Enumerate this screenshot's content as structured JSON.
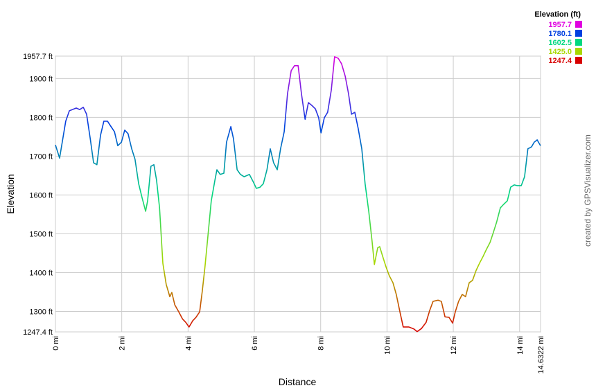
{
  "chart_data": {
    "type": "line",
    "y_label": "Elevation",
    "x_label": "Distance",
    "credit": "created by GPSVisualizer.com",
    "grid": true,
    "x": [
      0,
      0.125,
      0.31,
      0.42,
      0.63,
      0.73,
      0.84,
      0.94,
      1.05,
      1.15,
      1.25,
      1.36,
      1.46,
      1.57,
      1.67,
      1.78,
      1.88,
      1.99,
      2.09,
      2.19,
      2.3,
      2.4,
      2.51,
      2.61,
      2.72,
      2.78,
      2.88,
      2.97,
      3.05,
      3.14,
      3.24,
      3.34,
      3.45,
      3.51,
      3.6,
      3.72,
      3.83,
      3.93,
      4.03,
      4.14,
      4.24,
      4.35,
      4.43,
      4.51,
      4.6,
      4.7,
      4.81,
      4.87,
      4.97,
      5.08,
      5.16,
      5.29,
      5.37,
      5.48,
      5.58,
      5.69,
      5.85,
      5.96,
      6.06,
      6.17,
      6.27,
      6.38,
      6.48,
      6.58,
      6.69,
      6.79,
      6.9,
      7.0,
      7.11,
      7.21,
      7.32,
      7.42,
      7.53,
      7.63,
      7.73,
      7.84,
      7.94,
      8.01,
      8.11,
      8.21,
      8.32,
      8.42,
      8.53,
      8.63,
      8.74,
      8.84,
      8.93,
      9.03,
      9.13,
      9.24,
      9.34,
      9.45,
      9.55,
      9.62,
      9.72,
      9.78,
      9.87,
      9.97,
      10.07,
      10.18,
      10.28,
      10.39,
      10.49,
      10.66,
      10.81,
      10.91,
      11.04,
      11.18,
      11.29,
      11.39,
      11.54,
      11.64,
      11.75,
      11.87,
      11.98,
      12.06,
      12.16,
      12.27,
      12.37,
      12.48,
      12.58,
      12.69,
      12.79,
      12.9,
      13.0,
      13.11,
      13.21,
      13.31,
      13.42,
      13.52,
      13.63,
      13.73,
      13.84,
      13.94,
      14.05,
      14.15,
      14.25,
      14.36,
      14.44,
      14.53,
      14.63
    ],
    "values": [
      1729,
      1695,
      1790,
      1817,
      1824,
      1820,
      1826,
      1808,
      1745,
      1683,
      1678,
      1754,
      1790,
      1790,
      1777,
      1763,
      1727,
      1736,
      1767,
      1758,
      1719,
      1692,
      1629,
      1594,
      1558,
      1585,
      1674,
      1678,
      1638,
      1567,
      1424,
      1370,
      1338,
      1349,
      1317,
      1299,
      1281,
      1272,
      1260,
      1276,
      1285,
      1299,
      1353,
      1415,
      1495,
      1585,
      1638,
      1665,
      1653,
      1656,
      1736,
      1776,
      1745,
      1665,
      1653,
      1647,
      1653,
      1635,
      1617,
      1620,
      1629,
      1665,
      1719,
      1683,
      1665,
      1719,
      1763,
      1861,
      1920,
      1933,
      1933,
      1861,
      1795,
      1838,
      1831,
      1822,
      1799,
      1760,
      1799,
      1813,
      1870,
      1956,
      1952,
      1938,
      1906,
      1861,
      1808,
      1813,
      1772,
      1719,
      1629,
      1558,
      1481,
      1421,
      1464,
      1467,
      1442,
      1415,
      1392,
      1374,
      1344,
      1299,
      1260,
      1260,
      1255,
      1248,
      1256,
      1272,
      1303,
      1326,
      1329,
      1326,
      1286,
      1285,
      1270,
      1299,
      1326,
      1344,
      1338,
      1374,
      1380,
      1406,
      1424,
      1442,
      1460,
      1478,
      1504,
      1531,
      1567,
      1576,
      1585,
      1620,
      1626,
      1624,
      1624,
      1647,
      1719,
      1724,
      1736,
      1742,
      1727
    ],
    "xlim": [
      0,
      14.6322
    ],
    "ylim": [
      1247.4,
      1957.7
    ],
    "xticks": [
      {
        "value": 0,
        "label": "0 mi"
      },
      {
        "value": 2,
        "label": "2 mi"
      },
      {
        "value": 4,
        "label": "4 mi"
      },
      {
        "value": 6,
        "label": "6 mi"
      },
      {
        "value": 8,
        "label": "8 mi"
      },
      {
        "value": 10,
        "label": "10 mi"
      },
      {
        "value": 12,
        "label": "12 mi"
      },
      {
        "value": 14,
        "label": "14 mi"
      },
      {
        "value": 14.6322,
        "label": "14.6322 mi"
      }
    ],
    "yticks": [
      {
        "value": 1247.4,
        "label": "1247.4 ft"
      },
      {
        "value": 1300,
        "label": "1300 ft"
      },
      {
        "value": 1400,
        "label": "1400 ft"
      },
      {
        "value": 1500,
        "label": "1500 ft"
      },
      {
        "value": 1600,
        "label": "1600 ft"
      },
      {
        "value": 1700,
        "label": "1700 ft"
      },
      {
        "value": 1800,
        "label": "1800 ft"
      },
      {
        "value": 1900,
        "label": "1900 ft"
      },
      {
        "value": 1957.7,
        "label": "1957.7 ft"
      }
    ],
    "color_scale": {
      "title": "Elevation (ft)",
      "values": [
        1957.7,
        1780.1,
        1602.5,
        1425.0,
        1247.4
      ],
      "value_labels": [
        "1957.7",
        "1780.1",
        "1602.5",
        "1425.0",
        "1247.4"
      ],
      "colors": [
        "#e000e0",
        "#0040e0",
        "#00d880",
        "#a8d800",
        "#d80000"
      ]
    }
  }
}
